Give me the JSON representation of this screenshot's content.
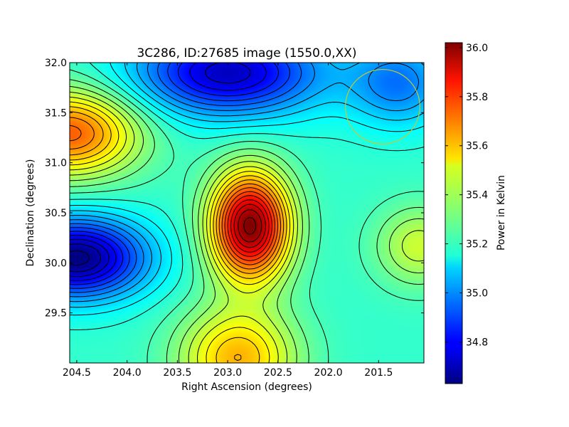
{
  "chart_data": {
    "type": "heatmap",
    "title": "3C286, ID:27685 image (1550.0,XX)",
    "xlabel": "Right Ascension (degrees)",
    "ylabel": "Declination (degrees)",
    "xlim": [
      204.57,
      201.05
    ],
    "ylim": [
      29.0,
      32.0
    ],
    "x_ticks": [
      204.5,
      204.0,
      203.5,
      203.0,
      202.5,
      202.0,
      201.5
    ],
    "x_tick_labels": [
      "204.5",
      "204.0",
      "203.5",
      "203.0",
      "202.5",
      "202.0",
      "201.5"
    ],
    "y_ticks": [
      29.5,
      30.0,
      30.5,
      31.0,
      31.5,
      32.0
    ],
    "y_tick_labels": [
      "29.5",
      "30.0",
      "30.5",
      "31.0",
      "31.5",
      "32.0"
    ],
    "colorbar": {
      "label": "Power in Kelvin",
      "colormap": "jet",
      "range": [
        34.63,
        36.02
      ],
      "ticks": [
        34.8,
        35.0,
        35.2,
        35.4,
        35.6,
        35.8,
        36.0
      ],
      "tick_labels": [
        "34.8",
        "35.0",
        "35.2",
        "35.4",
        "35.6",
        "35.8",
        "36.0"
      ]
    },
    "field_features": [
      {
        "kind": "peak",
        "ra": 202.78,
        "dec": 30.37,
        "value": 36.02
      },
      {
        "kind": "peak",
        "ra": 204.57,
        "dec": 31.3,
        "value": 35.72
      },
      {
        "kind": "peak",
        "ra": 202.9,
        "dec": 29.05,
        "value": 35.6
      },
      {
        "kind": "peak",
        "ra": 201.1,
        "dec": 30.17,
        "value": 35.43
      },
      {
        "kind": "minimum",
        "ra": 204.5,
        "dec": 30.05,
        "value": 34.63
      },
      {
        "kind": "minimum",
        "ra": 203.0,
        "dec": 31.9,
        "value": 34.72
      },
      {
        "kind": "minimum",
        "ra": 201.3,
        "dec": 31.8,
        "value": 34.97
      }
    ],
    "contour_interval": 0.05,
    "beam_circle": {
      "ra": 201.46,
      "dec": 31.56,
      "radius_deg": 0.37,
      "color": "#c8c832"
    }
  }
}
